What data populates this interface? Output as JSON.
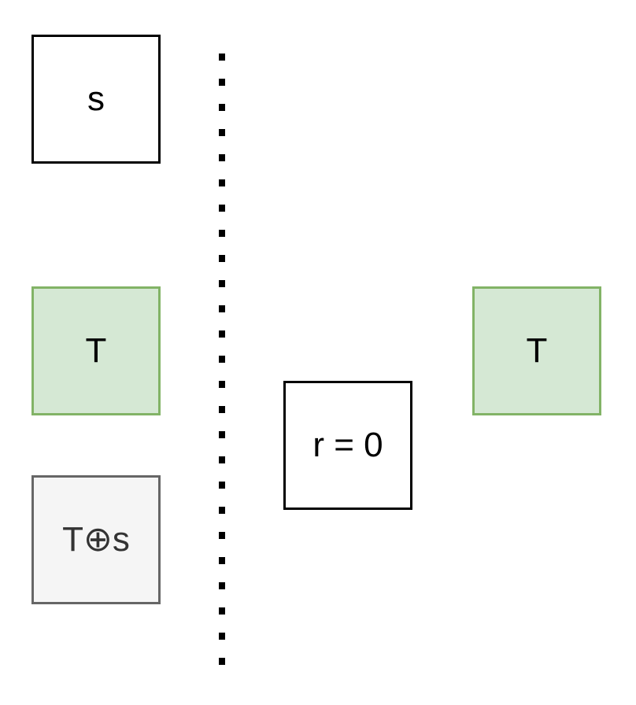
{
  "diagram": {
    "nodes": {
      "s": {
        "label": "s"
      },
      "t_left": {
        "label": "T"
      },
      "t_xor_s": {
        "label": "T⊕s"
      },
      "r": {
        "label": "r = 0"
      },
      "t_right": {
        "label": "T"
      }
    },
    "colors": {
      "green_fill": "#d5e8d4",
      "green_stroke": "#82b366",
      "gray_fill": "#f5f5f5",
      "gray_stroke": "#666666",
      "black_stroke": "#000000",
      "divider": "#000000"
    }
  }
}
